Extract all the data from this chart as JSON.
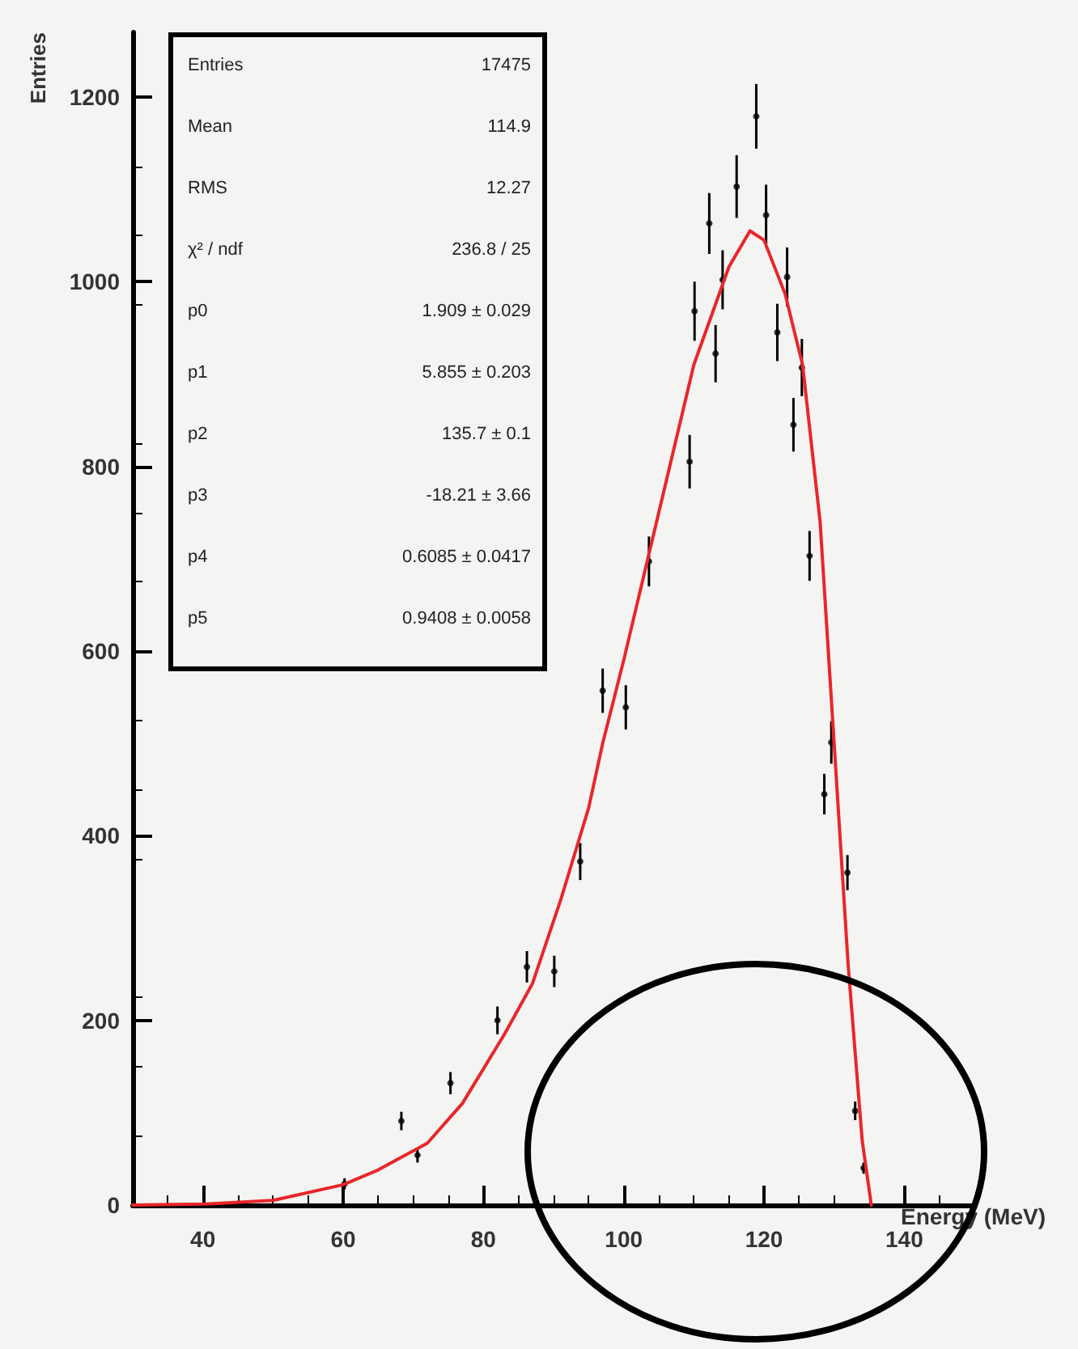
{
  "chart_data": {
    "type": "scatter",
    "xlabel": "Energy (MeV)",
    "ylabel": "Entries",
    "xlim": [
      30,
      150
    ],
    "xticks": [
      40,
      60,
      80,
      100,
      120,
      140
    ],
    "ylim": [
      0,
      1270
    ],
    "yticks": [
      0,
      200,
      400,
      600,
      800,
      1000,
      1200
    ],
    "marker": "circle",
    "annotations": [
      "Entries  17475",
      "Mean  114.9",
      "RMS  12.27",
      "χ² / ndf  236.8 / 25",
      "p0  1.909 ± 0.029",
      "p1  5.855 ± 0.203",
      "p2  135.7 ± 0.1",
      "p3  -18.21 ± 3.66",
      "p4  0.6085 ± 0.0417",
      "p5  0.9408 ± 0.0058"
    ],
    "series": [
      {
        "color": "#000000",
        "x": [
          60.2,
          68.3,
          70.6,
          75.3,
          82,
          86.2,
          90.1,
          93.8,
          97,
          100.3,
          103.6,
          109.4,
          110.1,
          112.2,
          113.1,
          114.1,
          116.1,
          118.9,
          120.3,
          121.9,
          123.3,
          124.2,
          125.4,
          126.5,
          128.6,
          129.6,
          131.9,
          133,
          134.2
        ],
        "values": [
          23,
          91,
          54,
          132,
          200,
          258,
          253,
          372,
          557,
          539,
          697,
          805,
          968,
          1063,
          922,
          1002,
          1103,
          1179,
          1072,
          945,
          1005,
          845,
          907,
          703,
          445,
          501,
          360,
          102,
          40
        ],
        "errors": [
          6,
          10,
          8,
          12,
          15,
          17,
          17,
          20,
          24,
          24,
          27,
          29,
          32,
          33,
          31,
          32,
          34,
          35,
          33,
          31,
          32,
          29,
          31,
          27,
          22,
          23,
          19,
          10,
          6
        ]
      },
      {
        "type": "line",
        "color": "#e8262b",
        "marker": "none",
        "x": [
          30,
          40,
          50,
          60,
          65,
          72,
          77,
          83,
          87,
          91,
          95,
          97,
          100,
          105,
          110,
          115,
          118,
          120,
          123,
          125.5,
          128,
          129,
          130,
          132,
          134,
          135.3
        ],
        "values": [
          0,
          1,
          5,
          22,
          38,
          67,
          110,
          185,
          240,
          330,
          430,
          500,
          590,
          750,
          910,
          1016,
          1055,
          1045,
          987,
          910,
          740,
          620,
          500,
          260,
          70,
          0
        ]
      }
    ]
  }
}
